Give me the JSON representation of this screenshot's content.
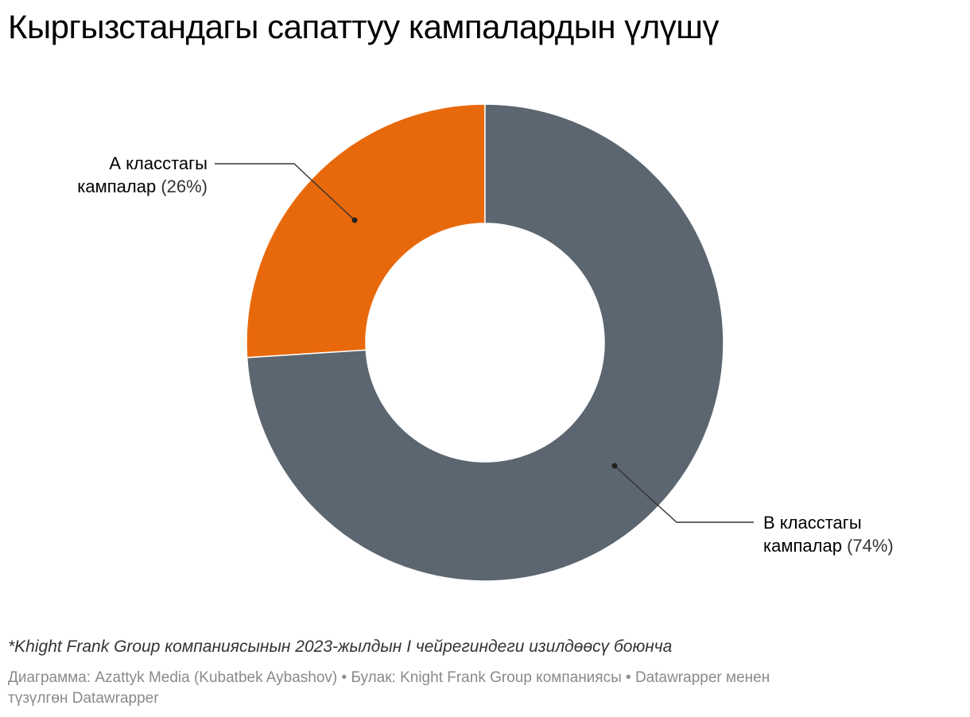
{
  "title": "Кыргызстандагы сапаттуу кампалардын үлүшү",
  "chart_data": {
    "type": "pie",
    "variant": "donut",
    "slices": [
      {
        "line1": "А класстагы",
        "line2": "кампалар",
        "pct_label": "(26%)",
        "value": 26,
        "color": "#e8690b"
      },
      {
        "line1": "В класстагы",
        "line2": "кампалар",
        "pct_label": "(74%)",
        "value": 74,
        "color": "#5b6670"
      }
    ]
  },
  "footnote": "*Khight Frank Group компаниясынын 2023-жылдын I чейрегиндеги изилдөөсү боюнча",
  "source": {
    "line1": "Диаграмма: Azattyk Media (Kubatbek Aybashov) • Булак: Knight Frank Group компаниясы • Datawrapper менен",
    "line2": "түзүлгөн Datawrapper"
  }
}
